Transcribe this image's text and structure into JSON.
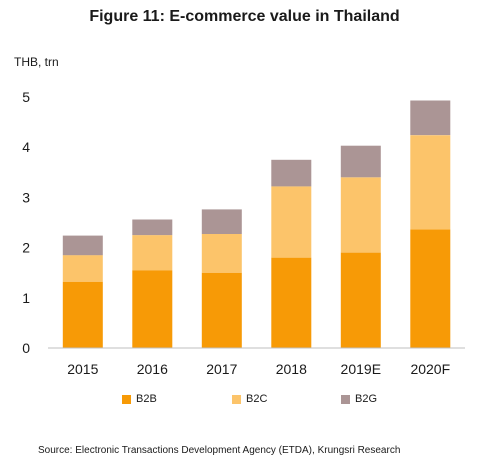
{
  "title": "Figure 11:  E-commerce value in Thailand",
  "source": "Source: Electronic Transactions Development Agency (ETDA), Krungsri Research",
  "colors": {
    "B2B": "#F79A06",
    "B2C": "#FCC46A",
    "B2G": "#AB9595"
  },
  "chart_data": {
    "type": "bar",
    "stacked": true,
    "ylabel": "THB, trn",
    "ylim": [
      0,
      5
    ],
    "yticks": [
      "0",
      "1",
      "2",
      "3",
      "4",
      "5"
    ],
    "categories": [
      "2015",
      "2016",
      "2017",
      "2018",
      "2019E",
      "2020F"
    ],
    "series": [
      {
        "name": "B2B",
        "values": [
          1.32,
          1.55,
          1.5,
          1.8,
          1.9,
          2.36
        ]
      },
      {
        "name": "B2C",
        "values": [
          0.53,
          0.7,
          0.77,
          1.42,
          1.5,
          1.88
        ]
      },
      {
        "name": "B2G",
        "values": [
          0.39,
          0.31,
          0.49,
          0.53,
          0.63,
          0.69
        ]
      }
    ],
    "legend": "bottom",
    "grid": false
  }
}
